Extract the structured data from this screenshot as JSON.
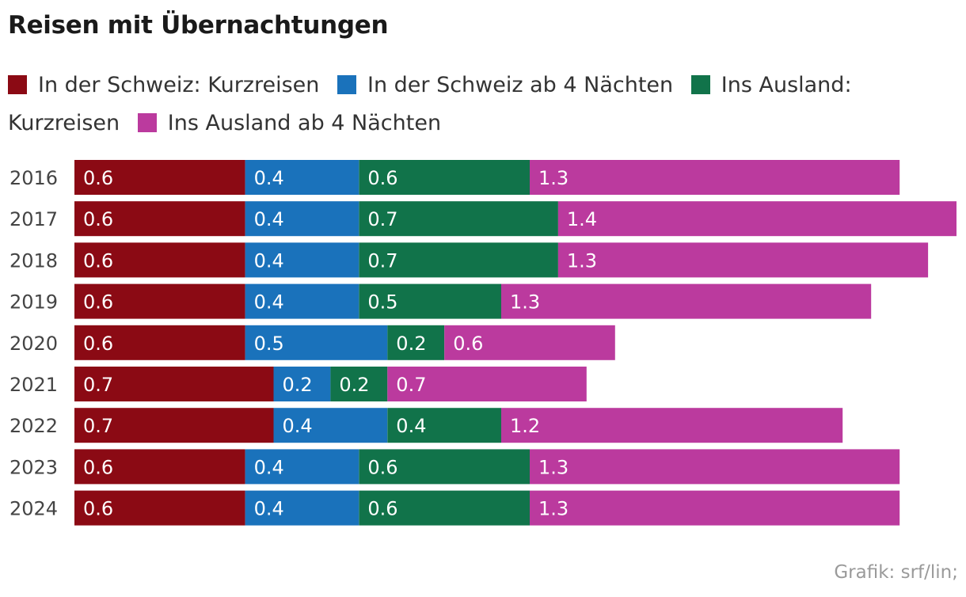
{
  "chart_data": {
    "type": "bar",
    "orientation": "horizontal",
    "stacked": true,
    "title": "Reisen mit Übernachtungen",
    "categories": [
      "2016",
      "2017",
      "2018",
      "2019",
      "2020",
      "2021",
      "2022",
      "2023",
      "2024"
    ],
    "series": [
      {
        "name": "In der Schweiz: Kurzreisen",
        "color": "#8b0a14",
        "values": [
          0.6,
          0.6,
          0.6,
          0.6,
          0.6,
          0.7,
          0.7,
          0.6,
          0.6
        ]
      },
      {
        "name": "In der Schweiz ab 4 Nächten",
        "color": "#1a72bb",
        "values": [
          0.4,
          0.4,
          0.4,
          0.4,
          0.5,
          0.2,
          0.4,
          0.4,
          0.4
        ]
      },
      {
        "name": "Ins Ausland: Kurzreisen",
        "color": "#11734a",
        "values": [
          0.6,
          0.7,
          0.7,
          0.5,
          0.2,
          0.2,
          0.4,
          0.6,
          0.6
        ]
      },
      {
        "name": "Ins Ausland ab 4 Nächten",
        "color": "#bb3a9e",
        "values": [
          1.3,
          1.4,
          1.3,
          1.3,
          0.6,
          0.7,
          1.2,
          1.3,
          1.3
        ]
      }
    ],
    "xlim": [
      0,
      3.1
    ],
    "xlabel": "",
    "ylabel": "",
    "grid": false,
    "legend_position": "top"
  },
  "source": "Grafik: srf/lin;"
}
